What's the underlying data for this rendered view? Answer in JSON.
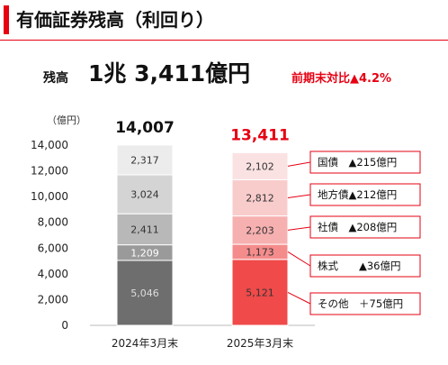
{
  "header": {
    "title": "有価証券残高（利回り）"
  },
  "balance": {
    "label": "残高",
    "value": "1兆 3,411億円",
    "change": "前期末対比▲4.2%"
  },
  "chart_data": {
    "type": "bar",
    "stacked": true,
    "unit": "（億円）",
    "ylim": [
      0,
      14000
    ],
    "yticks": [
      0,
      2000,
      4000,
      6000,
      8000,
      10000,
      12000,
      14000
    ],
    "ytick_labels": [
      "0",
      "2,000",
      "4,000",
      "6,000",
      "8,000",
      "10,000",
      "12,000",
      "14,000"
    ],
    "categories": [
      "2024年3月末",
      "2025年3月末"
    ],
    "totals": [
      "14,007",
      "13,411"
    ],
    "series": [
      {
        "key": "other",
        "values": [
          5046,
          5121
        ],
        "labels": [
          "5,046",
          "5,121"
        ]
      },
      {
        "key": "stocks",
        "values": [
          1209,
          1173
        ],
        "labels": [
          "1,209",
          "1,173"
        ]
      },
      {
        "key": "corporate",
        "values": [
          2411,
          2203
        ],
        "labels": [
          "2,411",
          "2,203"
        ]
      },
      {
        "key": "municipal",
        "values": [
          3024,
          2812
        ],
        "labels": [
          "3,024",
          "2,812"
        ]
      },
      {
        "key": "jgb",
        "values": [
          2317,
          2102
        ],
        "labels": [
          "2,317",
          "2,102"
        ]
      }
    ],
    "annotations": [
      {
        "series": "jgb",
        "text": "国債　▲215億円"
      },
      {
        "series": "municipal",
        "text": "地方債▲212億円"
      },
      {
        "series": "corporate",
        "text": "社債　▲208億円"
      },
      {
        "series": "stocks",
        "text": "株式　　▲36億円"
      },
      {
        "series": "other",
        "text": "その他　＋75億円"
      }
    ],
    "colors": {
      "prev": [
        "#6e6e6e",
        "#9a9a9a",
        "#b8b8b8",
        "#d4d4d4",
        "#ececec"
      ],
      "curr": [
        "#f04a4a",
        "#f58c8c",
        "#f7b0b0",
        "#f9cccc",
        "#fbe2e2"
      ],
      "accent": "#e60012"
    }
  }
}
